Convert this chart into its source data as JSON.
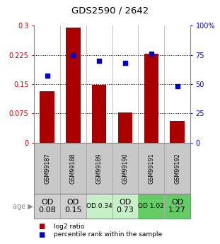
{
  "title": "GDS2590 / 2642",
  "samples": [
    "GSM99187",
    "GSM99188",
    "GSM99189",
    "GSM99190",
    "GSM99191",
    "GSM99192"
  ],
  "log2_ratio": [
    0.132,
    0.295,
    0.148,
    0.078,
    0.228,
    0.055
  ],
  "percentile_rank": [
    57,
    75,
    70,
    68,
    76,
    48
  ],
  "od_values": [
    "OD\n0.08",
    "OD\n0.15",
    "OD 0.34",
    "OD\n0.73",
    "OD 1.02",
    "OD\n1.27"
  ],
  "od_bg_colors": [
    "#d0d0d0",
    "#d0d0d0",
    "#c8f0c8",
    "#c8f0c8",
    "#66cc66",
    "#66cc66"
  ],
  "od_fontsize_large": 8,
  "od_fontsize_small": 6.5,
  "od_large_indices": [
    0,
    1,
    3,
    5
  ],
  "bar_color": "#aa0000",
  "dot_color": "#0000cc",
  "left_yticks": [
    0,
    0.075,
    0.15,
    0.225,
    0.3
  ],
  "left_yticklabels": [
    "0",
    "0.075",
    "0.15",
    "0.225",
    "0.3"
  ],
  "right_yticks": [
    0,
    25,
    50,
    75,
    100
  ],
  "right_yticklabels": [
    "0",
    "25",
    "50",
    "75",
    "100%"
  ],
  "left_ylim": [
    0,
    0.3
  ],
  "right_ylim": [
    0,
    100
  ],
  "ylabel_left_color": "#cc0000",
  "ylabel_right_color": "#0000cc",
  "grid_yticks": [
    0.075,
    0.15,
    0.225
  ],
  "sample_bg_color": "#c8c8c8"
}
